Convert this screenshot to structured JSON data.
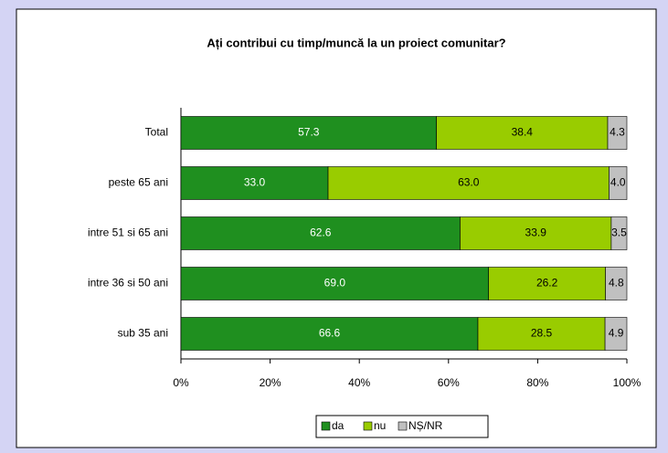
{
  "chart_data": {
    "type": "stacked_bar_horizontal",
    "title": "Ați contribui cu timp/muncă la un proiect comunitar?",
    "categories": [
      "Total",
      "peste 65 ani",
      "intre 51 si 65 ani",
      "intre 36 si 50 ani",
      "sub 35 ani"
    ],
    "series": [
      {
        "name": "da",
        "color": "#1f8f1f",
        "values": [
          57.3,
          33.0,
          62.6,
          69.0,
          66.6
        ],
        "value_labels": [
          "57.3",
          "33.0",
          "62.6",
          "69.0",
          "66.6"
        ]
      },
      {
        "name": "nu",
        "color": "#99cc00",
        "values": [
          38.4,
          63.0,
          33.9,
          26.2,
          28.5
        ],
        "value_labels": [
          "38.4",
          "63.0",
          "33.9",
          "26.2",
          "28.5"
        ]
      },
      {
        "name": "NȘ/NR",
        "color": "#c0c0c0",
        "values": [
          4.3,
          4.0,
          3.5,
          4.8,
          4.9
        ],
        "value_labels": [
          "4.3",
          "4.0",
          "3.5",
          "4.8",
          "4.9"
        ]
      }
    ],
    "xlim": [
      0,
      100
    ],
    "xticks": [
      {
        "value": 0,
        "label": "0%"
      },
      {
        "value": 20,
        "label": "20%"
      },
      {
        "value": 40,
        "label": "40%"
      },
      {
        "value": 60,
        "label": "60%"
      },
      {
        "value": 80,
        "label": "80%"
      },
      {
        "value": 100,
        "label": "100%"
      }
    ]
  }
}
